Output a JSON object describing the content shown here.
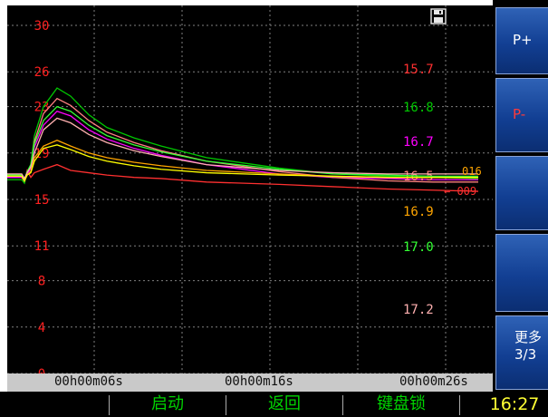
{
  "sidebar": {
    "buttons": [
      {
        "label": "P+"
      },
      {
        "label": "P-"
      },
      {
        "label": ""
      },
      {
        "label": ""
      },
      {
        "label": "更多\n3/3"
      }
    ]
  },
  "bottom_bar": {
    "start_label": "启动",
    "back_label": "返回",
    "keylock_label": "键盘锁",
    "clock": "16:27"
  },
  "colors": {
    "axis_label": "#ff2020",
    "grid": "#808080",
    "accent_button": "#1c4aa4"
  },
  "icons": {
    "save": "floppy-disk-icon"
  },
  "chart_data": {
    "type": "line",
    "title": "",
    "xlabel": "",
    "ylabel": "",
    "ylim": [
      0,
      30
    ],
    "y_ticks": [
      0,
      4,
      8,
      11,
      15,
      19,
      23,
      26,
      30
    ],
    "x_ticks": [
      "00h00m06s",
      "00h00m16s",
      "00h00m26s"
    ],
    "grid": true,
    "series": [
      {
        "color": "#ff3030",
        "current": "15.7",
        "x": [
          0,
          16,
          19,
          22,
          26,
          30,
          40,
          55,
          70,
          90,
          110,
          140,
          170,
          220,
          300,
          360,
          420,
          470,
          520
        ],
        "y": [
          17.1,
          17.1,
          16.5,
          17.5,
          16.9,
          17.3,
          17.6,
          18.0,
          17.5,
          17.3,
          17.1,
          16.9,
          16.8,
          16.5,
          16.3,
          16.1,
          15.9,
          15.8,
          15.7
        ]
      },
      {
        "color": "#00c800",
        "current": "16.8",
        "x": [
          0,
          16,
          19,
          22,
          26,
          30,
          40,
          55,
          70,
          90,
          110,
          140,
          170,
          220,
          300,
          360,
          420,
          470,
          520
        ],
        "y": [
          16.7,
          16.7,
          16.4,
          17.3,
          18.0,
          20.5,
          23.0,
          24.6,
          23.9,
          22.3,
          21.2,
          20.3,
          19.6,
          18.6,
          17.7,
          17.2,
          17.0,
          16.9,
          16.8
        ]
      },
      {
        "color": "#ff00ff",
        "current": "16.7",
        "x": [
          0,
          16,
          19,
          22,
          26,
          30,
          40,
          55,
          70,
          90,
          110,
          140,
          170,
          220,
          300,
          360,
          420,
          470,
          520
        ],
        "y": [
          16.9,
          16.9,
          16.6,
          17.1,
          17.7,
          19.5,
          21.4,
          22.6,
          22.2,
          21.0,
          20.2,
          19.4,
          18.8,
          18.0,
          17.2,
          16.9,
          16.8,
          16.7,
          16.7
        ]
      },
      {
        "color": "#ff8080",
        "current": "16.5",
        "x": [
          0,
          16,
          19,
          22,
          26,
          30,
          40,
          55,
          70,
          90,
          110,
          140,
          170,
          220,
          300,
          360,
          420,
          470,
          520
        ],
        "y": [
          17.0,
          17.0,
          16.6,
          17.4,
          17.8,
          20.0,
          22.4,
          23.7,
          23.1,
          21.8,
          20.8,
          19.9,
          19.2,
          18.3,
          17.4,
          16.9,
          16.6,
          16.5,
          16.5
        ]
      },
      {
        "color": "#ffa500",
        "current": "16.9",
        "x": [
          0,
          16,
          19,
          22,
          26,
          30,
          40,
          55,
          70,
          90,
          110,
          140,
          170,
          220,
          300,
          360,
          420,
          470,
          520
        ],
        "y": [
          17.0,
          17.0,
          16.6,
          17.1,
          17.4,
          18.6,
          19.6,
          20.1,
          19.6,
          19.0,
          18.6,
          18.2,
          17.9,
          17.5,
          17.2,
          17.0,
          16.9,
          16.9,
          16.9
        ]
      },
      {
        "color": "#33ff33",
        "current": "17.0",
        "x": [
          0,
          16,
          19,
          22,
          26,
          30,
          40,
          55,
          70,
          90,
          110,
          140,
          170,
          220,
          300,
          360,
          420,
          470,
          520
        ],
        "y": [
          17.1,
          17.1,
          16.7,
          17.4,
          18.0,
          19.8,
          21.8,
          23.0,
          22.6,
          21.4,
          20.5,
          19.7,
          19.1,
          18.3,
          17.6,
          17.2,
          17.1,
          17.0,
          17.0
        ]
      },
      {
        "color": "#ffb0b0",
        "current": "17.2",
        "x": [
          0,
          16,
          19,
          22,
          26,
          30,
          40,
          55,
          70,
          90,
          110,
          140,
          170,
          220,
          300,
          360,
          420,
          470,
          520
        ],
        "y": [
          17.2,
          17.2,
          16.8,
          17.3,
          17.8,
          19.0,
          21.0,
          22.0,
          21.6,
          20.6,
          19.9,
          19.2,
          18.7,
          18.0,
          17.5,
          17.3,
          17.2,
          17.2,
          17.2
        ]
      },
      {
        "color": "#ffff00",
        "current": "",
        "x": [
          0,
          16,
          19,
          22,
          26,
          30,
          40,
          55,
          70,
          90,
          110,
          140,
          170,
          220,
          300,
          360,
          420,
          470,
          520
        ],
        "y": [
          17.0,
          17.0,
          16.6,
          17.1,
          17.3,
          18.3,
          19.4,
          19.7,
          19.3,
          18.7,
          18.3,
          17.9,
          17.6,
          17.3,
          17.1,
          17.0,
          16.9,
          16.9,
          16.9
        ]
      }
    ],
    "end_marker": {
      "text": "← 009",
      "color": "#ff3030"
    },
    "end_marker_top": {
      "text": "016",
      "color": "#ffa500"
    }
  }
}
